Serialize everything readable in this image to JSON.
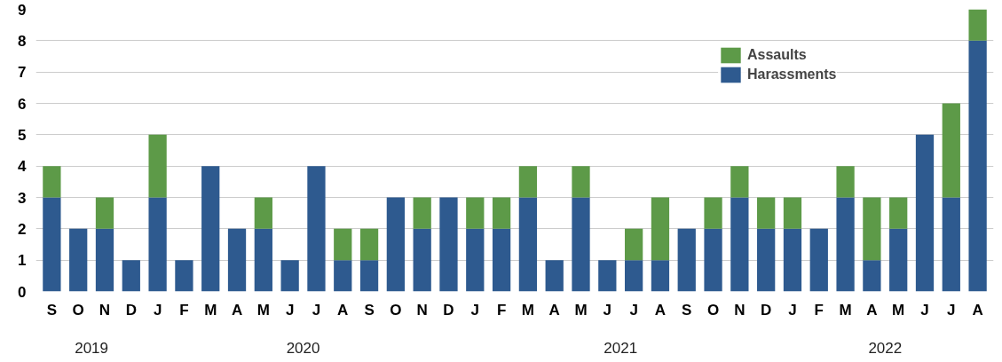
{
  "chart_data": {
    "type": "bar",
    "stacked": true,
    "categories": [
      "S",
      "O",
      "N",
      "D",
      "J",
      "F",
      "M",
      "A",
      "M",
      "J",
      "J",
      "A",
      "S",
      "O",
      "N",
      "D",
      "J",
      "F",
      "M",
      "A",
      "M",
      "J",
      "J",
      "A",
      "S",
      "O",
      "N",
      "D",
      "J",
      "F",
      "M",
      "A",
      "M",
      "J",
      "J",
      "A"
    ],
    "series": [
      {
        "name": "Harassments",
        "color": "#2e5a8f",
        "values": [
          3,
          2,
          2,
          1,
          3,
          1,
          4,
          2,
          2,
          1,
          4,
          1,
          1,
          3,
          2,
          3,
          2,
          2,
          3,
          1,
          3,
          1,
          1,
          1,
          2,
          2,
          3,
          2,
          2,
          2,
          3,
          1,
          2,
          5,
          3,
          8
        ]
      },
      {
        "name": "Assaults",
        "color": "#5d9a48",
        "values": [
          1,
          0,
          1,
          0,
          2,
          0,
          0,
          0,
          1,
          0,
          0,
          1,
          1,
          0,
          1,
          0,
          1,
          1,
          1,
          0,
          1,
          0,
          1,
          2,
          0,
          1,
          1,
          1,
          1,
          0,
          1,
          2,
          1,
          0,
          3,
          1
        ]
      }
    ],
    "ylim": [
      0,
      9
    ],
    "yticks": [
      0,
      1,
      2,
      3,
      4,
      5,
      6,
      7,
      8,
      9
    ],
    "grid": "y",
    "legend": "top right",
    "annotations": [
      "2019",
      "2020",
      "2021",
      "2022"
    ]
  }
}
